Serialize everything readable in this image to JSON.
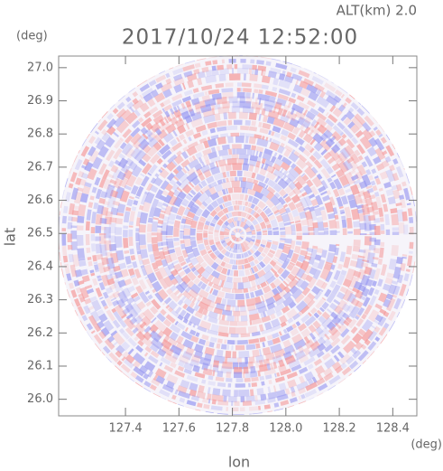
{
  "chart_data": {
    "type": "radar-ppi",
    "title": "2017/10/24 12:52:00",
    "subtitle": "ALT(km) 2.0",
    "x_label": "lon",
    "x_unit": "(deg)",
    "y_label": "lat",
    "y_unit": "(deg)",
    "xlim": [
      127.15,
      128.49
    ],
    "ylim": [
      25.95,
      27.035
    ],
    "xticks": [
      127.4,
      127.6,
      127.8,
      {
        "value": 128,
        "label": "128.0"
      },
      128.2,
      128.4
    ],
    "yticks": [
      {
        "value": 26,
        "label": "26.0"
      },
      26.1,
      26.2,
      26.3,
      26.4,
      26.5,
      26.6,
      26.7,
      26.8,
      26.9,
      {
        "value": 27,
        "label": "27.0"
      }
    ]
  }
}
